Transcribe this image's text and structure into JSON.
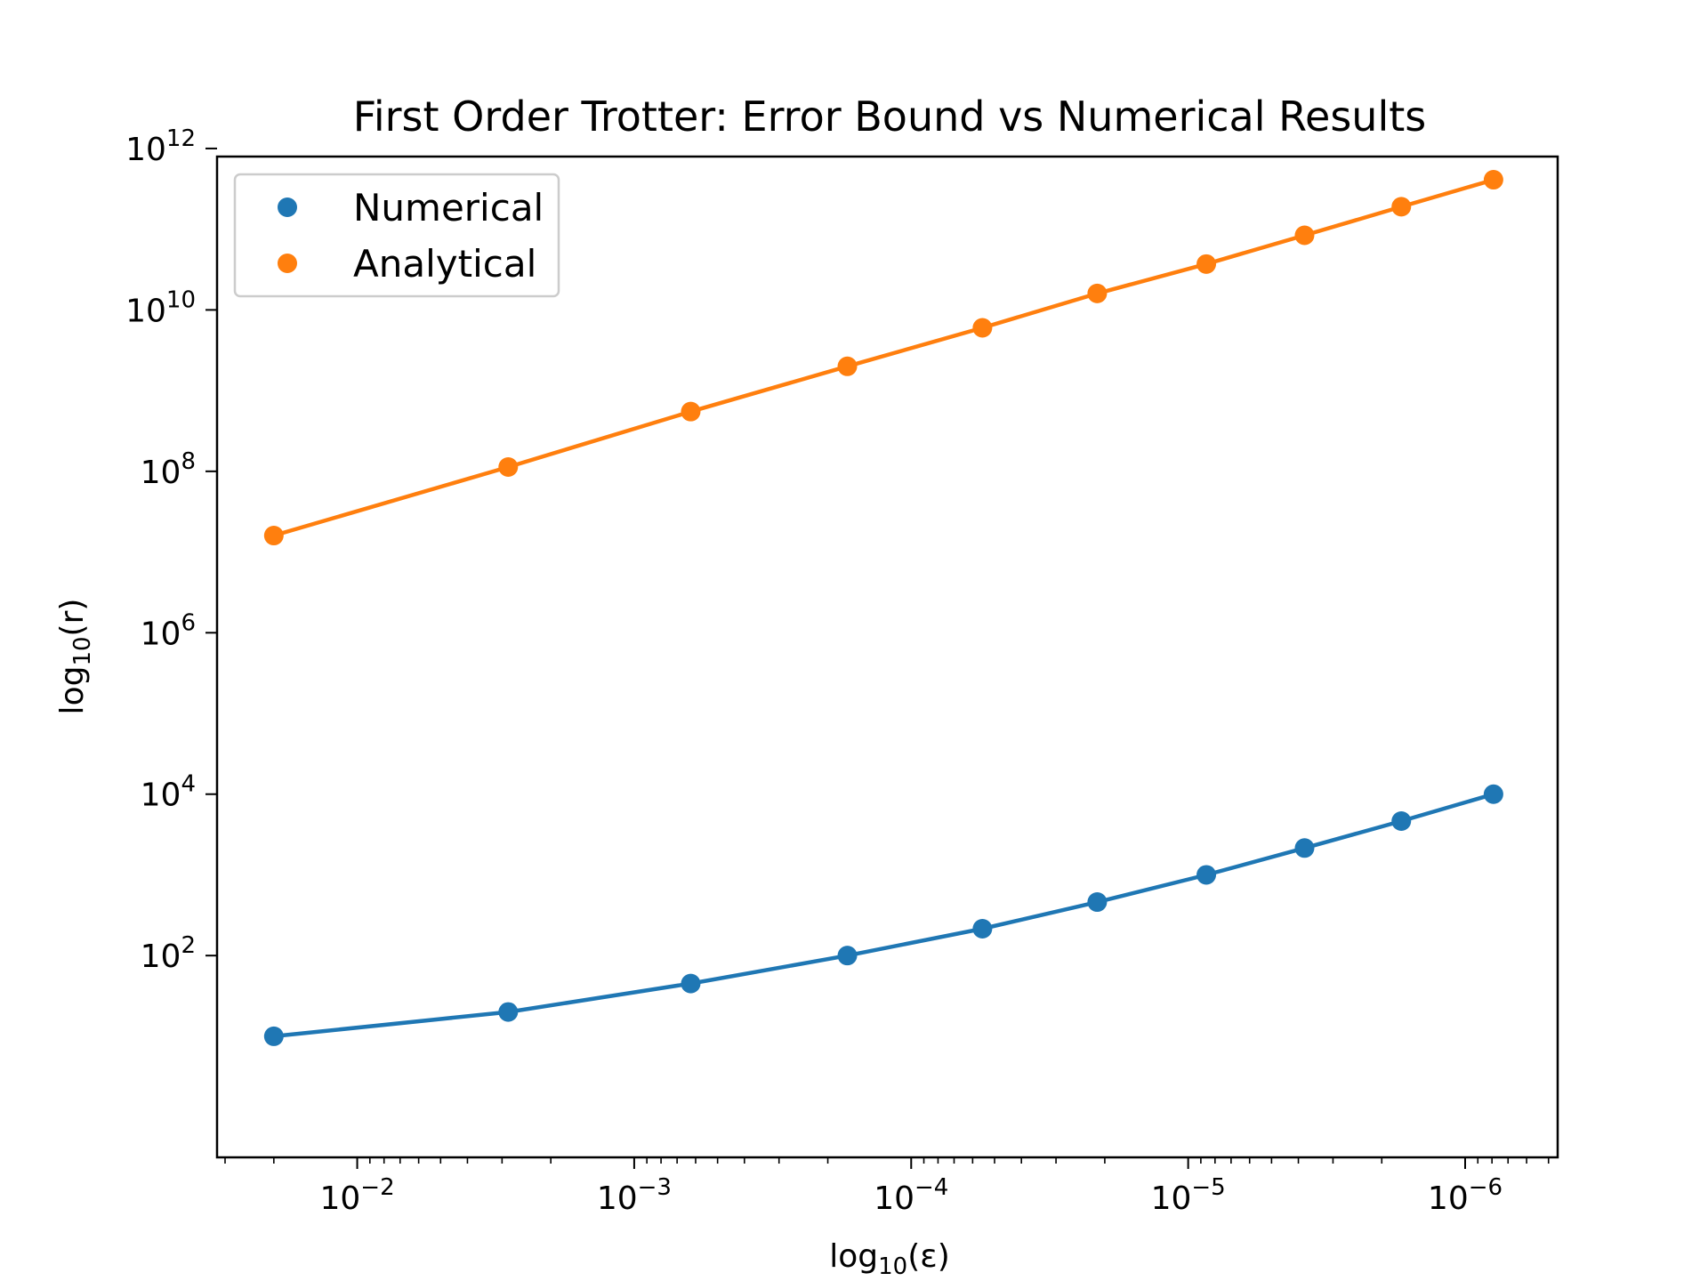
{
  "chart_data": {
    "type": "line",
    "title": "First Order Trotter: Error Bound vs Numerical Results",
    "xlabel": {
      "base": "log",
      "sub": "10",
      "rest": "(ε)"
    },
    "ylabel": {
      "base": "log",
      "sub": "10",
      "rest": "(r)"
    },
    "x_scale": "log",
    "y_scale": "log",
    "x_inverted": true,
    "x_exponent_range": [
      -1.494,
      -6.334
    ],
    "y_exponent_range": [
      -0.5,
      11.9
    ],
    "x_ticks": [
      {
        "base": "10",
        "exp": "−2",
        "value": 0.01
      },
      {
        "base": "10",
        "exp": "−3",
        "value": 0.001
      },
      {
        "base": "10",
        "exp": "−4",
        "value": 0.0001
      },
      {
        "base": "10",
        "exp": "−5",
        "value": 1e-05
      },
      {
        "base": "10",
        "exp": "−6",
        "value": 1e-06
      }
    ],
    "y_ticks": [
      {
        "base": "10",
        "exp": "2",
        "value": 100
      },
      {
        "base": "10",
        "exp": "4",
        "value": 10000
      },
      {
        "base": "10",
        "exp": "6",
        "value": 1000000
      },
      {
        "base": "10",
        "exp": "8",
        "value": 100000000
      },
      {
        "base": "10",
        "exp": "10",
        "value": 10000000000
      },
      {
        "base": "10",
        "exp": "12",
        "value": 1000000000000
      }
    ],
    "x": [
      0.02,
      0.00285,
      0.000625,
      0.00017,
      5.53e-05,
      2.13e-05,
      8.6e-06,
      3.8e-06,
      1.7e-06,
      7.9e-07
    ],
    "series": [
      {
        "name": "Numerical",
        "color": "#1f77b4",
        "values": [
          10,
          20,
          45,
          100,
          215,
          460,
          1000,
          2150,
          4640,
          10000
        ]
      },
      {
        "name": "Analytical",
        "color": "#ff7f0e",
        "values": [
          16000000,
          113000000,
          550000000,
          2000000000,
          6000000000,
          16000000000,
          37000000000,
          84000000000,
          190000000000,
          410000000000
        ]
      }
    ],
    "legend_position": "top-left",
    "grid": false
  }
}
